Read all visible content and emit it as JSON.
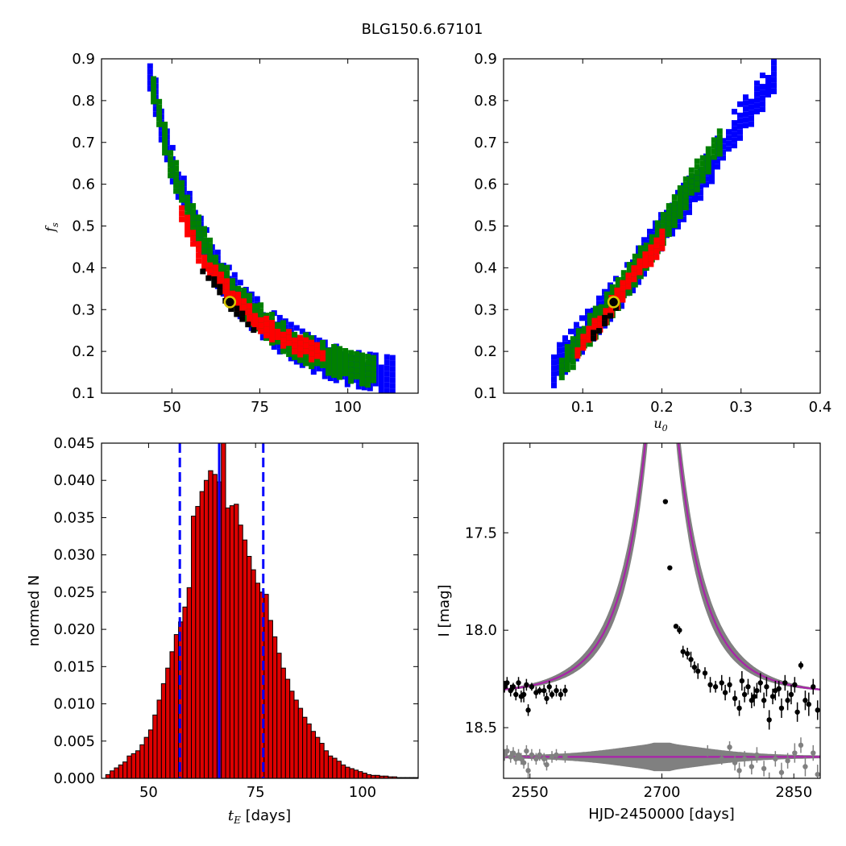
{
  "suptitle": "BLG150.6.67101",
  "colors": {
    "outer": "#0000ff",
    "mid": "#008000",
    "inner": "#ff0000",
    "core": "#000000",
    "bar_fill": "#dd0000",
    "median_line": "#0000ff",
    "model": "#aa22aa",
    "model_band": "#808080",
    "best_fit_marker": "#d9c800"
  },
  "chart_data": [
    {
      "type": "heatmap",
      "panel": "top-left",
      "xlabel": "",
      "ylabel": "f_s",
      "ylabel_main": "f",
      "ylabel_sub": "s",
      "xlim": [
        30,
        120
      ],
      "ylim": [
        0.1,
        0.9
      ],
      "xticks": [
        50,
        75,
        100
      ],
      "xtick_labels": [
        "50",
        "75",
        "100"
      ],
      "yticks": [
        0.1,
        0.2,
        0.3,
        0.4,
        0.5,
        0.6,
        0.7,
        0.8,
        0.9
      ],
      "ytick_labels": [
        "0.1",
        "0.2",
        "0.3",
        "0.4",
        "0.5",
        "0.6",
        "0.7",
        "0.8",
        "0.9"
      ],
      "best_fit": [
        66.5,
        0.318
      ],
      "regions": {
        "outer": [
          [
            43,
            0.87
          ],
          [
            48,
            0.68
          ],
          [
            55,
            0.52
          ],
          [
            62,
            0.4
          ],
          [
            70,
            0.31
          ],
          [
            80,
            0.24
          ],
          [
            90,
            0.19
          ],
          [
            100,
            0.16
          ],
          [
            112,
            0.145
          ]
        ],
        "mid": [
          [
            44,
            0.82
          ],
          [
            49,
            0.65
          ],
          [
            55,
            0.52
          ],
          [
            62,
            0.4
          ],
          [
            70,
            0.31
          ],
          [
            80,
            0.24
          ],
          [
            90,
            0.195
          ],
          [
            100,
            0.165
          ],
          [
            108,
            0.15
          ]
        ],
        "inner": [
          [
            52,
            0.54
          ],
          [
            56,
            0.45
          ],
          [
            62,
            0.38
          ],
          [
            70,
            0.3
          ],
          [
            78,
            0.25
          ],
          [
            86,
            0.215
          ],
          [
            93,
            0.19
          ]
        ],
        "core": [
          [
            58,
            0.4
          ],
          [
            62,
            0.36
          ],
          [
            66,
            0.31
          ],
          [
            70,
            0.28
          ],
          [
            73,
            0.255
          ]
        ]
      }
    },
    {
      "type": "heatmap",
      "panel": "top-right",
      "xlabel": "u_0",
      "xlabel_main": "u",
      "xlabel_sub": "0",
      "ylabel": "",
      "xlim": [
        0.0,
        0.4
      ],
      "ylim": [
        0.1,
        0.9
      ],
      "xticks": [
        0.1,
        0.2,
        0.3,
        0.4
      ],
      "xtick_labels": [
        "0.1",
        "0.2",
        "0.3",
        "0.4"
      ],
      "yticks": [
        0.1,
        0.2,
        0.3,
        0.4,
        0.5,
        0.6,
        0.7,
        0.8,
        0.9
      ],
      "ytick_labels": [
        "0.1",
        "0.2",
        "0.3",
        "0.4",
        "0.5",
        "0.6",
        "0.7",
        "0.8",
        "0.9"
      ],
      "best_fit": [
        0.139,
        0.318
      ],
      "regions": {
        "outer": [
          [
            0.06,
            0.16
          ],
          [
            0.1,
            0.25
          ],
          [
            0.15,
            0.36
          ],
          [
            0.2,
            0.5
          ],
          [
            0.25,
            0.62
          ],
          [
            0.29,
            0.74
          ],
          [
            0.32,
            0.81
          ],
          [
            0.34,
            0.87
          ]
        ],
        "mid": [
          [
            0.07,
            0.16
          ],
          [
            0.1,
            0.24
          ],
          [
            0.15,
            0.36
          ],
          [
            0.2,
            0.5
          ],
          [
            0.24,
            0.62
          ],
          [
            0.27,
            0.71
          ]
        ],
        "inner": [
          [
            0.09,
            0.2
          ],
          [
            0.12,
            0.28
          ],
          [
            0.16,
            0.38
          ],
          [
            0.19,
            0.45
          ],
          [
            0.2,
            0.48
          ]
        ],
        "core": [
          [
            0.11,
            0.24
          ],
          [
            0.13,
            0.29
          ],
          [
            0.145,
            0.33
          ]
        ]
      }
    },
    {
      "type": "bar",
      "panel": "bottom-left",
      "xlabel": "t_E [days]",
      "xlabel_main": "t",
      "xlabel_sub": "E",
      "xlabel_unit": " [days]",
      "ylabel": "normed N",
      "xlim": [
        39,
        113
      ],
      "ylim": [
        0,
        0.045
      ],
      "xticks": [
        50,
        75,
        100
      ],
      "xtick_labels": [
        "50",
        "75",
        "100"
      ],
      "yticks": [
        0,
        0.005,
        0.01,
        0.015,
        0.02,
        0.025,
        0.03,
        0.035,
        0.04,
        0.045
      ],
      "ytick_labels": [
        "0.000",
        "0.005",
        "0.010",
        "0.015",
        "0.020",
        "0.025",
        "0.030",
        "0.035",
        "0.040",
        "0.045"
      ],
      "bin_start": 40,
      "bin_width": 1,
      "values": [
        0.0005,
        0.001,
        0.0014,
        0.0018,
        0.0022,
        0.003,
        0.0033,
        0.0037,
        0.0045,
        0.0055,
        0.0065,
        0.0085,
        0.0105,
        0.0127,
        0.0148,
        0.017,
        0.0193,
        0.021,
        0.023,
        0.0256,
        0.0352,
        0.0365,
        0.0385,
        0.04,
        0.0413,
        0.0408,
        0.0398,
        0.0451,
        0.0363,
        0.0366,
        0.0368,
        0.034,
        0.032,
        0.0298,
        0.028,
        0.0262,
        0.025,
        0.0247,
        0.0212,
        0.019,
        0.0168,
        0.0148,
        0.0133,
        0.0117,
        0.0105,
        0.0094,
        0.0082,
        0.0073,
        0.0063,
        0.0055,
        0.0047,
        0.0037,
        0.003,
        0.0027,
        0.0023,
        0.0018,
        0.0015,
        0.0013,
        0.0011,
        0.0009,
        0.0007,
        0.0005,
        0.0004,
        0.0004,
        0.0003,
        0.0003,
        0.0002,
        0.0002,
        0.0001,
        0.0001,
        0.0001,
        0.0001,
        0.0001
      ],
      "median": 66.5,
      "interval": [
        57.3,
        76.8
      ]
    },
    {
      "type": "scatter",
      "panel": "bottom-right",
      "xlabel": "HJD-2450000 [days]",
      "ylabel": "I [mag]",
      "xlim": [
        2520,
        2880
      ],
      "ylim": [
        18.76,
        17.04
      ],
      "xticks": [
        2550,
        2700,
        2850
      ],
      "xtick_labels": [
        "2550",
        "2700",
        "2850"
      ],
      "yticks": [
        17.5,
        18.0,
        18.5
      ],
      "ytick_labels": [
        "17.5",
        "18.0",
        "18.5"
      ],
      "model": {
        "t0": 2700,
        "tE": 66.5,
        "u0": 0.139,
        "baseline": 18.33,
        "residual_baseline": 18.65
      },
      "points": [
        [
          2521,
          18.29,
          0.03
        ],
        [
          2524,
          18.27,
          0.03
        ],
        [
          2528,
          18.31,
          0.03
        ],
        [
          2531,
          18.29,
          0.02
        ],
        [
          2534,
          18.33,
          0.03
        ],
        [
          2537,
          18.27,
          0.03
        ],
        [
          2540,
          18.34,
          0.03
        ],
        [
          2543,
          18.33,
          0.04
        ],
        [
          2546,
          18.28,
          0.03
        ],
        [
          2548,
          18.41,
          0.03
        ],
        [
          2552,
          18.29,
          0.02
        ],
        [
          2557,
          18.32,
          0.03
        ],
        [
          2561,
          18.31,
          0.02
        ],
        [
          2566,
          18.31,
          0.03
        ],
        [
          2569,
          18.35,
          0.03
        ],
        [
          2572,
          18.29,
          0.03
        ],
        [
          2575,
          18.33,
          0.02
        ],
        [
          2580,
          18.31,
          0.03
        ],
        [
          2585,
          18.33,
          0.03
        ],
        [
          2590,
          18.31,
          0.03
        ],
        [
          2704,
          17.34,
          0.01
        ],
        [
          2709,
          17.68,
          0.01
        ],
        [
          2716,
          17.98,
          0.01
        ],
        [
          2720,
          18.0,
          0.02
        ],
        [
          2724,
          18.11,
          0.03
        ],
        [
          2729,
          18.12,
          0.03
        ],
        [
          2733,
          18.15,
          0.04
        ],
        [
          2737,
          18.19,
          0.03
        ],
        [
          2741,
          18.21,
          0.04
        ],
        [
          2749,
          18.22,
          0.03
        ],
        [
          2755,
          18.28,
          0.04
        ],
        [
          2761,
          18.29,
          0.03
        ],
        [
          2768,
          18.27,
          0.04
        ],
        [
          2772,
          18.32,
          0.04
        ],
        [
          2777,
          18.28,
          0.04
        ],
        [
          2783,
          18.35,
          0.04
        ],
        [
          2788,
          18.4,
          0.04
        ],
        [
          2791,
          18.26,
          0.05
        ],
        [
          2794,
          18.33,
          0.04
        ],
        [
          2798,
          18.29,
          0.04
        ],
        [
          2802,
          18.36,
          0.04
        ],
        [
          2805,
          18.34,
          0.05
        ],
        [
          2808,
          18.31,
          0.04
        ],
        [
          2812,
          18.27,
          0.05
        ],
        [
          2816,
          18.36,
          0.04
        ],
        [
          2819,
          18.29,
          0.05
        ],
        [
          2822,
          18.46,
          0.05
        ],
        [
          2826,
          18.34,
          0.04
        ],
        [
          2829,
          18.31,
          0.05
        ],
        [
          2833,
          18.3,
          0.04
        ],
        [
          2836,
          18.4,
          0.05
        ],
        [
          2840,
          18.27,
          0.04
        ],
        [
          2843,
          18.36,
          0.05
        ],
        [
          2847,
          18.33,
          0.05
        ],
        [
          2851,
          18.28,
          0.04
        ],
        [
          2854,
          18.42,
          0.05
        ],
        [
          2858,
          18.18,
          0.02
        ],
        [
          2863,
          18.36,
          0.05
        ],
        [
          2867,
          18.38,
          0.06
        ],
        [
          2872,
          18.29,
          0.04
        ],
        [
          2877,
          18.41,
          0.05
        ]
      ],
      "residual_points": [
        [
          2521,
          18.64,
          0.03
        ],
        [
          2524,
          18.62,
          0.03
        ],
        [
          2528,
          18.65,
          0.03
        ],
        [
          2531,
          18.63,
          0.03
        ],
        [
          2534,
          18.66,
          0.03
        ],
        [
          2537,
          18.64,
          0.03
        ],
        [
          2540,
          18.66,
          0.03
        ],
        [
          2543,
          18.68,
          0.03
        ],
        [
          2546,
          18.62,
          0.03
        ],
        [
          2548,
          18.72,
          0.04
        ],
        [
          2552,
          18.64,
          0.03
        ],
        [
          2557,
          18.66,
          0.03
        ],
        [
          2561,
          18.64,
          0.03
        ],
        [
          2566,
          18.66,
          0.03
        ],
        [
          2569,
          18.69,
          0.03
        ],
        [
          2575,
          18.65,
          0.03
        ],
        [
          2580,
          18.64,
          0.03
        ],
        [
          2590,
          18.65,
          0.03
        ],
        [
          2752,
          18.62,
          0.03
        ],
        [
          2768,
          18.66,
          0.03
        ],
        [
          2777,
          18.6,
          0.03
        ],
        [
          2783,
          18.68,
          0.04
        ],
        [
          2788,
          18.72,
          0.04
        ],
        [
          2794,
          18.66,
          0.04
        ],
        [
          2802,
          18.7,
          0.04
        ],
        [
          2808,
          18.64,
          0.04
        ],
        [
          2816,
          18.71,
          0.04
        ],
        [
          2822,
          18.78,
          0.05
        ],
        [
          2829,
          18.66,
          0.04
        ],
        [
          2836,
          18.73,
          0.05
        ],
        [
          2843,
          18.67,
          0.04
        ],
        [
          2851,
          18.63,
          0.05
        ],
        [
          2858,
          18.59,
          0.04
        ],
        [
          2863,
          18.7,
          0.05
        ],
        [
          2872,
          18.63,
          0.04
        ],
        [
          2877,
          18.74,
          0.05
        ]
      ]
    }
  ]
}
